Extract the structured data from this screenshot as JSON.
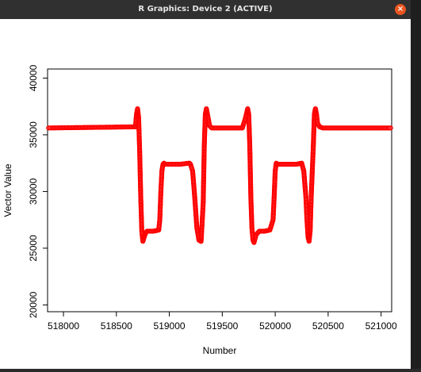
{
  "window": {
    "title": "R Graphics: Device 2 (ACTIVE)",
    "close_label": "×",
    "accent": "#e95420"
  },
  "chart_data": {
    "type": "scatter",
    "title": "",
    "xlabel": "Number",
    "ylabel": "Vector Value",
    "xlim": [
      517850,
      521100
    ],
    "ylim": [
      19400,
      40800
    ],
    "xticks": [
      518000,
      518500,
      519000,
      519500,
      520000,
      520500,
      521000
    ],
    "yticks": [
      20000,
      25000,
      30000,
      35000,
      40000
    ],
    "point_color": "#ff0000",
    "marker": "open-circle",
    "grid": false,
    "legend": "none",
    "series_outline": {
      "x": [
        517850,
        518680,
        518690,
        518700,
        518710,
        518720,
        518730,
        518740,
        518750,
        518760,
        518770,
        518780,
        518790,
        518800,
        518850,
        518900,
        518910,
        518920,
        518930,
        518940,
        518950,
        518960,
        519000,
        519100,
        519190,
        519200,
        519220,
        519240,
        519260,
        519280,
        519300,
        519320,
        519330,
        519340,
        519350,
        519360,
        519380,
        519400,
        519450,
        519500,
        519690,
        519720,
        519740,
        519750,
        519760,
        519770,
        519780,
        519790,
        519800,
        519820,
        519850,
        519900,
        519950,
        519980,
        519990,
        520000,
        520010,
        520020,
        520030,
        520050,
        520100,
        520200,
        520250,
        520270,
        520290,
        520300,
        520310,
        520320,
        520330,
        520340,
        520360,
        520370,
        520380,
        520390,
        520400,
        520420,
        520450,
        520500,
        521100
      ],
      "y": [
        35600,
        35700,
        36800,
        37300,
        36500,
        33500,
        29500,
        26500,
        25600,
        25900,
        26200,
        26400,
        26500,
        26500,
        26500,
        26600,
        27500,
        30000,
        31800,
        32400,
        32500,
        32400,
        32400,
        32400,
        32500,
        32400,
        31800,
        29500,
        26800,
        25700,
        25600,
        29000,
        34000,
        36800,
        37300,
        36800,
        35800,
        35600,
        35600,
        35600,
        35600,
        36500,
        37300,
        36800,
        34000,
        29500,
        26800,
        25700,
        25500,
        26200,
        26500,
        26500,
        26600,
        27500,
        29500,
        31800,
        32500,
        32400,
        32400,
        32400,
        32400,
        32400,
        32500,
        31800,
        29500,
        27500,
        26000,
        25600,
        26500,
        29500,
        34000,
        36800,
        37300,
        36800,
        36000,
        35700,
        35600,
        35600,
        35600
      ]
    }
  }
}
